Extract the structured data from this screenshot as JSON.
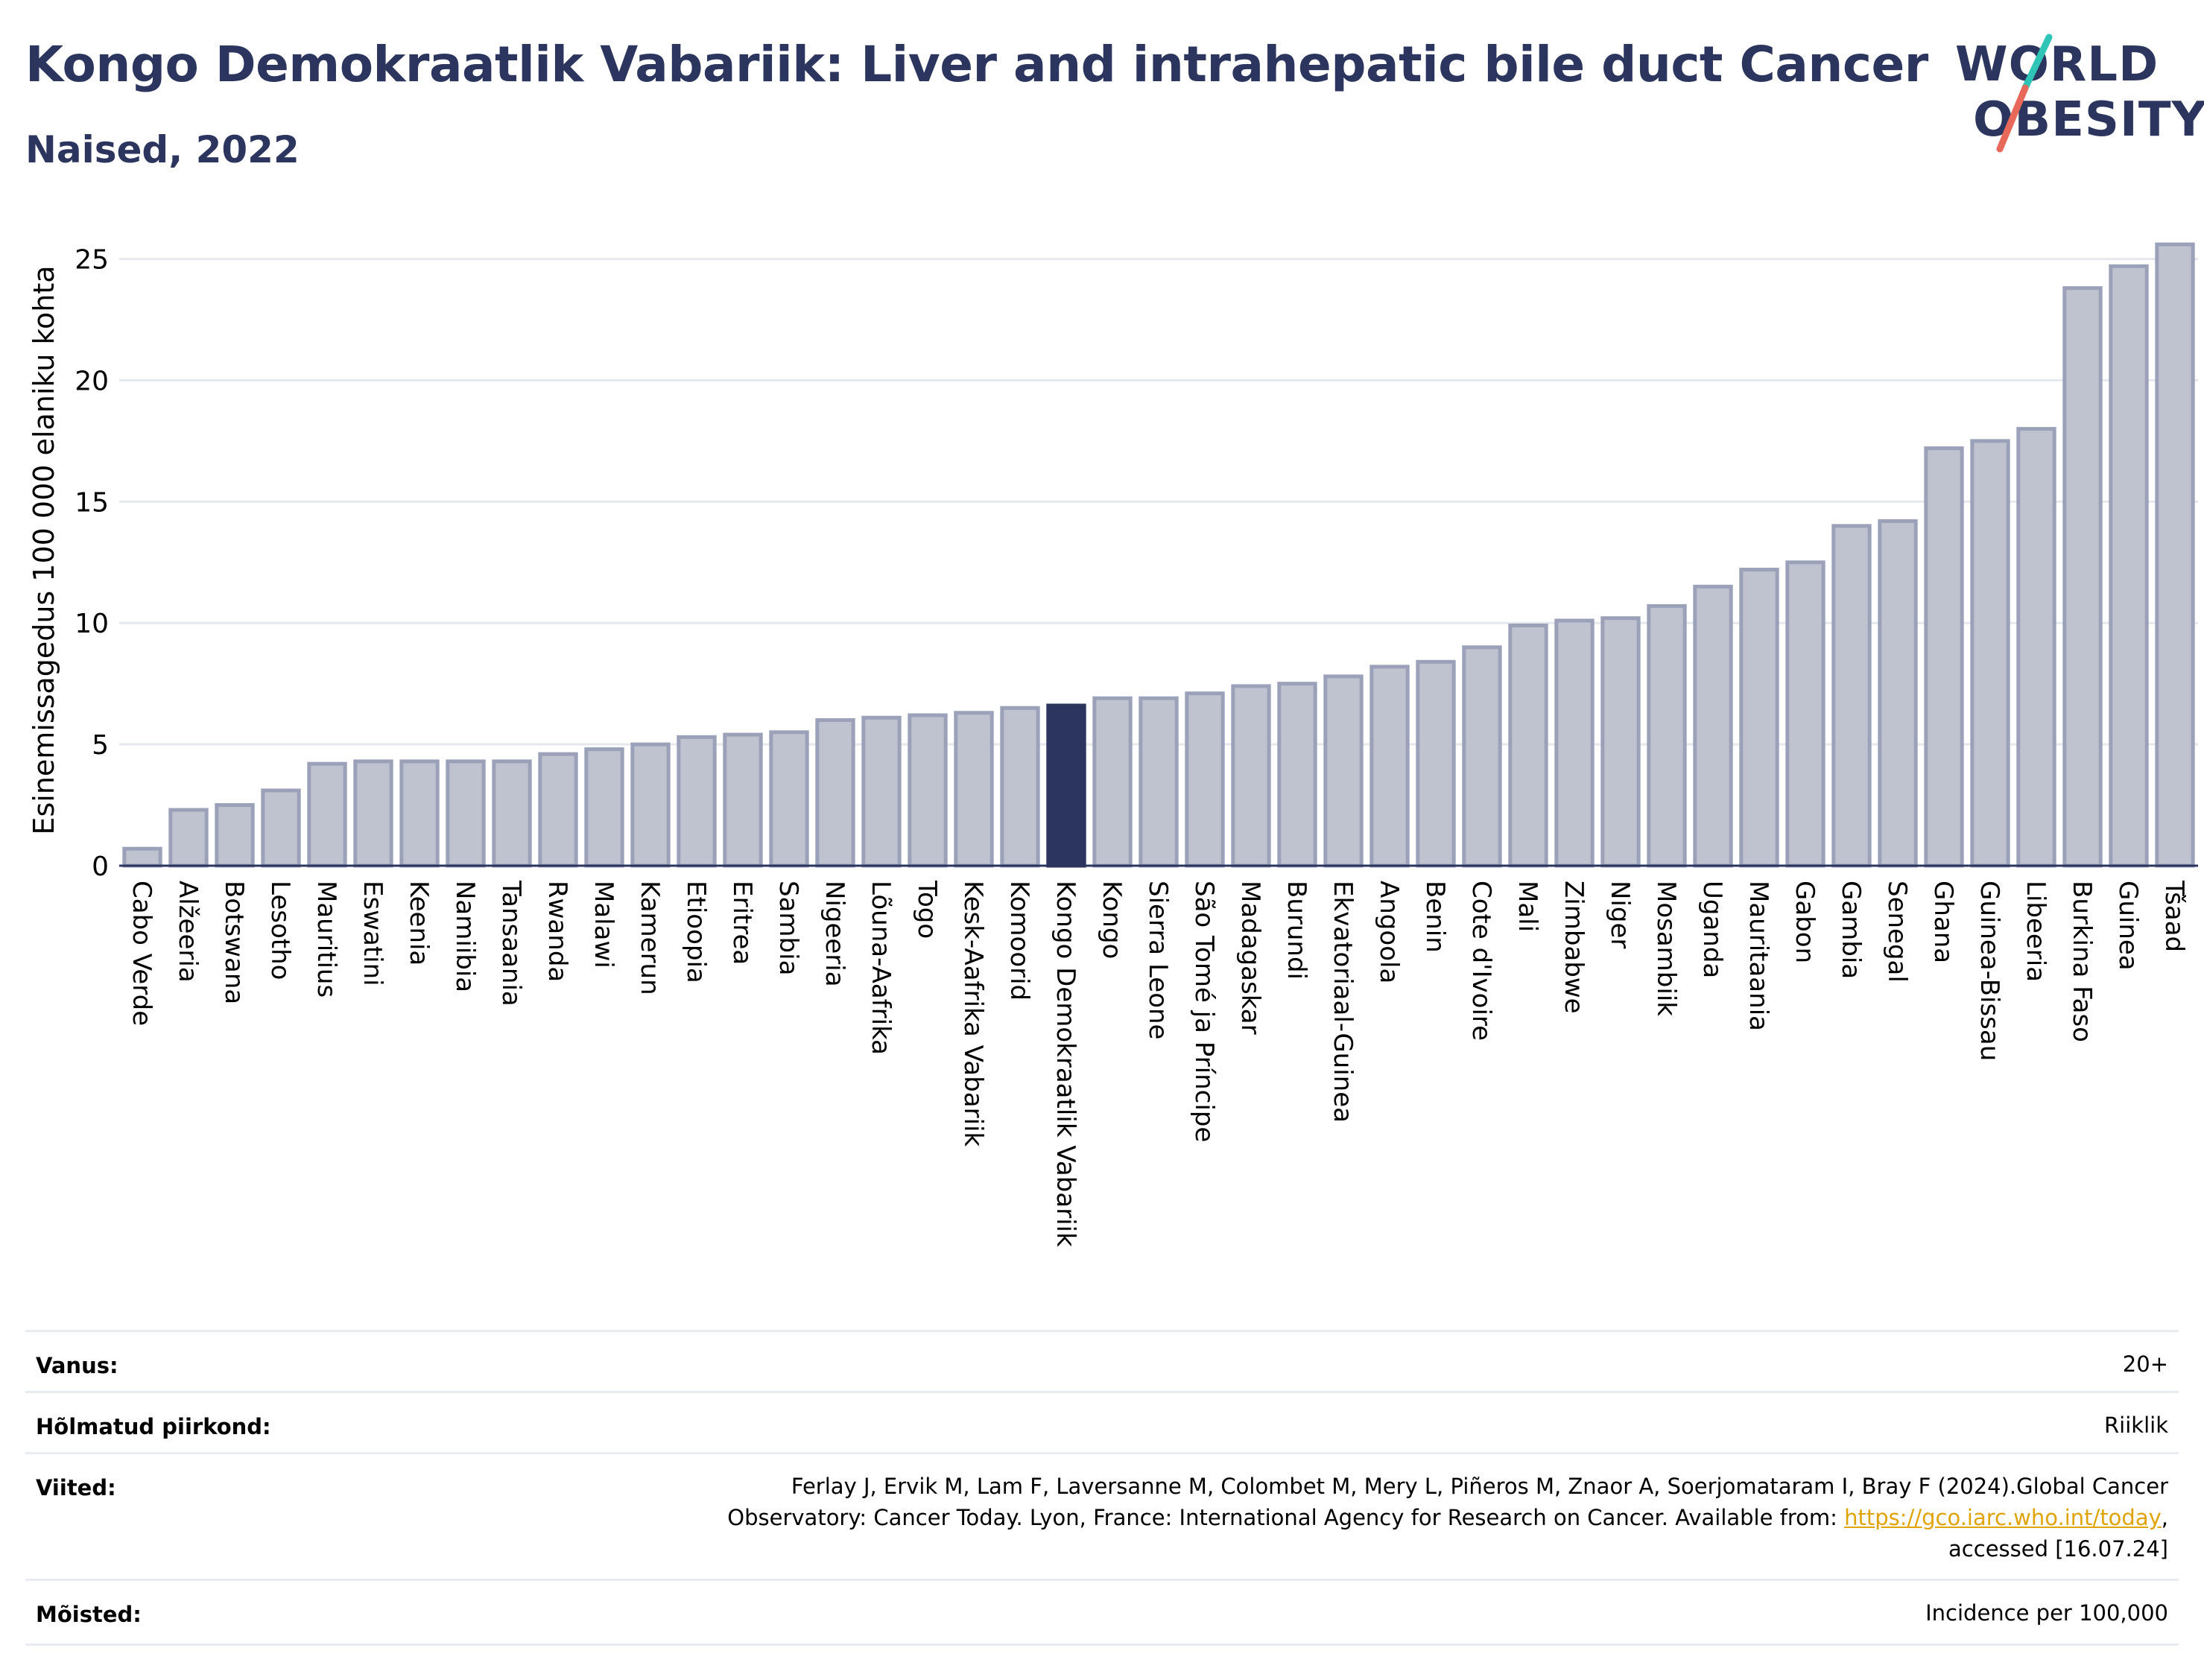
{
  "header": {
    "title": "Kongo Demokraatlik Vabariik: Liver and intrahepatic bile duct Cancer",
    "subtitle": "Naised, 2022"
  },
  "logo": {
    "line1": "WORLD",
    "line2": "OBESITY",
    "colors": {
      "text": "#2b355e",
      "slash_top": "#2ec4b6",
      "slash_bottom": "#e8685a"
    }
  },
  "chart_data": {
    "type": "bar",
    "ylabel": "Esinemissagedus 100 000 elaniku kohta",
    "ylim": [
      0,
      26
    ],
    "yticks": [
      0,
      5,
      10,
      15,
      20,
      25
    ],
    "grid": true,
    "highlight": "Kongo Demokraatlik Vabariik",
    "colors": {
      "bar": "#bfc3d0",
      "bar_edge": "#9aa1b9",
      "highlight": "#2b355e",
      "grid": "#e6e8ef"
    },
    "categories": [
      "Cabo Verde",
      "Alžeeria",
      "Botswana",
      "Lesotho",
      "Mauritius",
      "Eswatini",
      "Keenia",
      "Namiibia",
      "Tansaania",
      "Rwanda",
      "Malawi",
      "Kamerun",
      "Etioopia",
      "Eritrea",
      "Sambia",
      "Nigeeria",
      "Lõuna-Aafrika",
      "Togo",
      "Kesk-Aafrika Vabariik",
      "Komoorid",
      "Kongo Demokraatlik Vabariik",
      "Kongo",
      "Sierra Leone",
      "São Tomé ja Príncipe",
      "Madagaskar",
      "Burundi",
      "Ekvatoriaal-Guinea",
      "Angoola",
      "Benin",
      "Cote d'Ivoire",
      "Mali",
      "Zimbabwe",
      "Niger",
      "Mosambiik",
      "Uganda",
      "Mauritaania",
      "Gabon",
      "Gambia",
      "Senegal",
      "Ghana",
      "Guinea-Bissau",
      "Libeeria",
      "Burkina Faso",
      "Guinea",
      "Tšaad"
    ],
    "values": [
      0.7,
      2.3,
      2.5,
      3.1,
      4.2,
      4.3,
      4.3,
      4.3,
      4.3,
      4.6,
      4.8,
      5.0,
      5.3,
      5.4,
      5.5,
      6.0,
      6.1,
      6.2,
      6.3,
      6.5,
      6.6,
      6.9,
      6.9,
      7.1,
      7.4,
      7.5,
      7.8,
      8.2,
      8.4,
      9.0,
      9.9,
      10.1,
      10.2,
      10.7,
      11.5,
      12.2,
      12.5,
      14.0,
      14.2,
      17.2,
      17.5,
      18.0,
      23.8,
      24.7,
      25.6
    ]
  },
  "info": {
    "age_label": "Vanus:",
    "age_value": "20+",
    "area_label": "Hõlmatud piirkond:",
    "area_value": "Riiklik",
    "ref_label": "Viited:",
    "ref_line1": "Ferlay J, Ervik M, Lam F, Laversanne M, Colombet M, Mery L, Piñeros M, Znaor A, Soerjomataram I, Bray F (2024).Global Cancer",
    "ref_line2": "Observatory: Cancer Today. Lyon, France: International Agency for Research on Cancer. Available from: ",
    "ref_link": "https://gco.iarc.who.int/today",
    "ref_line2_end": ",",
    "ref_line3": "accessed [16.07.24]",
    "def_label": "Mõisted:",
    "def_value": "Incidence per 100,000"
  }
}
